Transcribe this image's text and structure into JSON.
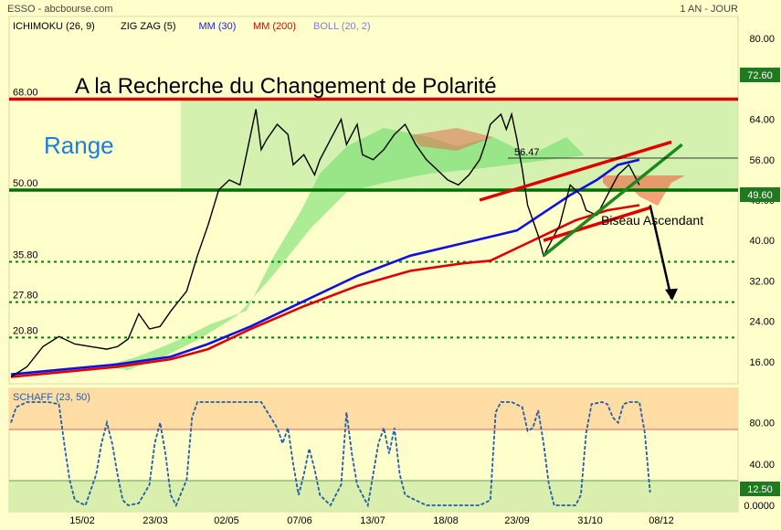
{
  "header": {
    "ticker": "ESSO - abcbourse.com",
    "timeframe": "1 AN - JOUR",
    "indicators": [
      {
        "label": "ICHIMOKU (26, 9)",
        "color": "#000000"
      },
      {
        "label": "ZIG ZAG (5)",
        "color": "#000000"
      },
      {
        "label": "MM (30)",
        "color": "#1a1aff"
      },
      {
        "label": "MM (200)",
        "color": "#e00000"
      },
      {
        "label": "BOLL (20, 2)",
        "color": "#8080d0"
      }
    ]
  },
  "annotations": {
    "headline": "A la Recherche du Changement de Polarité",
    "range_label": "Range",
    "pattern_label": "Biseau Ascendant",
    "peak_label": "56.47"
  },
  "chart_data": [
    {
      "type": "line",
      "title": "ESSO - abcbourse.com",
      "x_ticks": [
        "15/02",
        "23/03",
        "02/05",
        "07/06",
        "13/07",
        "18/08",
        "23/09",
        "31/10",
        "08/12"
      ],
      "y_ticks": [
        "80.00",
        "64.00",
        "56.00",
        "48.00",
        "40.00",
        "32.00",
        "24.00",
        "16.00"
      ],
      "ylim": [
        12,
        84
      ],
      "last_price": "72.60",
      "current_price": "49.60",
      "levels": [
        {
          "label": "68.00",
          "value": 68.0,
          "color": "#e00000",
          "style": "solid"
        },
        {
          "label": "50.00",
          "value": 50.0,
          "color": "#007000",
          "style": "solid"
        },
        {
          "label": "35.80",
          "value": 35.8,
          "color": "#008000",
          "style": "dotted"
        },
        {
          "label": "27.80",
          "value": 27.8,
          "color": "#008000",
          "style": "dotted"
        },
        {
          "label": "20.80",
          "value": 20.8,
          "color": "#008000",
          "style": "dotted"
        }
      ],
      "series": [
        {
          "name": "MM (30)",
          "color": "#1010e0",
          "points": [
            [
              0,
              13.5
            ],
            [
              10,
              14.5
            ],
            [
              20,
              15.5
            ],
            [
              30,
              17
            ],
            [
              37,
              19.5
            ],
            [
              45,
              23
            ],
            [
              55,
              28
            ],
            [
              65,
              33
            ],
            [
              75,
              37
            ],
            [
              85,
              39.5
            ],
            [
              95,
              42
            ],
            [
              100,
              45.5
            ],
            [
              105,
              49
            ],
            [
              110,
              52
            ],
            [
              114,
              55
            ],
            [
              118,
              56
            ]
          ]
        },
        {
          "name": "MM (200)",
          "color": "#e00000",
          "points": [
            [
              0,
              13
            ],
            [
              10,
              14
            ],
            [
              20,
              15
            ],
            [
              30,
              16.5
            ],
            [
              37,
              18.5
            ],
            [
              45,
              22.5
            ],
            [
              55,
              27
            ],
            [
              65,
              31
            ],
            [
              75,
              34
            ],
            [
              85,
              35.5
            ],
            [
              90,
              36
            ],
            [
              95,
              38.5
            ],
            [
              100,
              41
            ],
            [
              106,
              44
            ],
            [
              112,
              46
            ],
            [
              118,
              47
            ]
          ]
        },
        {
          "name": "Prix",
          "color": "#000000",
          "points": [
            [
              0,
              13
            ],
            [
              3,
              15
            ],
            [
              6,
              19
            ],
            [
              9,
              21
            ],
            [
              12,
              19.5
            ],
            [
              15,
              19
            ],
            [
              18,
              18.5
            ],
            [
              20,
              19
            ],
            [
              22,
              20.5
            ],
            [
              24,
              25.5
            ],
            [
              26,
              22.5
            ],
            [
              28,
              23
            ],
            [
              30,
              26
            ],
            [
              33,
              30
            ],
            [
              35,
              37
            ],
            [
              37,
              43
            ],
            [
              39,
              50
            ],
            [
              41,
              52
            ],
            [
              43,
              51
            ],
            [
              44,
              56
            ],
            [
              46,
              66
            ],
            [
              47,
              58
            ],
            [
              48,
              60
            ],
            [
              50,
              63
            ],
            [
              52,
              61
            ],
            [
              53,
              55
            ],
            [
              55,
              57
            ],
            [
              57,
              53
            ],
            [
              58,
              56
            ],
            [
              60,
              60
            ],
            [
              62,
              64
            ],
            [
              63,
              59
            ],
            [
              65,
              63
            ],
            [
              66,
              57
            ],
            [
              68,
              56
            ],
            [
              70,
              58
            ],
            [
              72,
              61
            ],
            [
              74,
              63
            ],
            [
              76,
              59
            ],
            [
              78,
              56
            ],
            [
              80,
              54
            ],
            [
              82,
              52
            ],
            [
              84,
              51
            ],
            [
              86,
              53
            ],
            [
              88,
              56
            ],
            [
              89,
              59
            ],
            [
              90,
              63
            ],
            [
              92,
              65
            ],
            [
              93,
              62
            ],
            [
              94,
              65
            ],
            [
              95,
              60
            ],
            [
              96,
              54
            ],
            [
              97,
              47
            ],
            [
              98,
              44
            ],
            [
              99,
              41
            ],
            [
              100,
              37
            ],
            [
              101,
              39
            ],
            [
              103,
              43
            ],
            [
              105,
              51
            ],
            [
              107,
              49
            ],
            [
              108,
              46
            ],
            [
              110,
              45
            ],
            [
              112,
              49
            ],
            [
              114,
              53
            ],
            [
              116,
              55
            ],
            [
              117,
              53
            ],
            [
              118,
              51
            ]
          ]
        }
      ],
      "trendlines": [
        {
          "name": "bord supérieur",
          "color": "#e00000",
          "from": [
            88,
            48
          ],
          "to": [
            124,
            59.5
          ]
        },
        {
          "name": "bord inférieur",
          "color": "#e00000",
          "from": [
            100,
            40
          ],
          "to": [
            120,
            46.5
          ]
        },
        {
          "name": "support oblique",
          "color": "#1a8a1a",
          "from": [
            100,
            37
          ],
          "to": [
            126,
            59
          ]
        }
      ],
      "projection": {
        "from": [
          120,
          47
        ],
        "to": [
          124,
          28.5
        ]
      }
    },
    {
      "type": "line",
      "title": "SCHAFF (23, 50)",
      "y_ticks": [
        "80.00",
        "40.00",
        "0.0000"
      ],
      "ylim": [
        0,
        100
      ],
      "last_value": "12.50",
      "series": [
        {
          "name": "SCHAFF",
          "color": "#1f5faa",
          "points": [
            [
              0,
              80
            ],
            [
              1,
              95
            ],
            [
              3,
              100
            ],
            [
              5,
              100
            ],
            [
              7,
              100
            ],
            [
              9,
              98
            ],
            [
              10,
              60
            ],
            [
              11,
              25
            ],
            [
              12,
              5
            ],
            [
              14,
              0
            ],
            [
              16,
              30
            ],
            [
              17,
              60
            ],
            [
              18,
              80
            ],
            [
              19,
              60
            ],
            [
              20,
              30
            ],
            [
              21,
              5
            ],
            [
              22,
              0
            ],
            [
              24,
              2
            ],
            [
              26,
              20
            ],
            [
              27,
              60
            ],
            [
              28,
              80
            ],
            [
              29,
              50
            ],
            [
              30,
              10
            ],
            [
              31,
              0
            ],
            [
              33,
              25
            ],
            [
              34,
              85
            ],
            [
              35,
              100
            ],
            [
              38,
              100
            ],
            [
              41,
              100
            ],
            [
              44,
              100
            ],
            [
              47,
              100
            ],
            [
              50,
              75
            ],
            [
              51,
              60
            ],
            [
              52,
              75
            ],
            [
              53,
              40
            ],
            [
              54,
              10
            ],
            [
              55,
              30
            ],
            [
              56,
              55
            ],
            [
              57,
              35
            ],
            [
              58,
              10
            ],
            [
              60,
              0
            ],
            [
              62,
              20
            ],
            [
              63,
              90
            ],
            [
              64,
              50
            ],
            [
              65,
              20
            ],
            [
              67,
              0
            ],
            [
              69,
              60
            ],
            [
              70,
              75
            ],
            [
              71,
              50
            ],
            [
              72,
              75
            ],
            [
              73,
              30
            ],
            [
              74,
              10
            ],
            [
              76,
              5
            ],
            [
              78,
              0
            ],
            [
              80,
              0
            ],
            [
              82,
              0
            ],
            [
              84,
              0
            ],
            [
              86,
              0
            ],
            [
              88,
              0
            ],
            [
              90,
              5
            ],
            [
              91,
              90
            ],
            [
              92,
              100
            ],
            [
              94,
              100
            ],
            [
              96,
              95
            ],
            [
              97,
              72
            ],
            [
              98,
              75
            ],
            [
              99,
              92
            ],
            [
              100,
              60
            ],
            [
              101,
              20
            ],
            [
              102,
              0
            ],
            [
              104,
              0
            ],
            [
              106,
              0
            ],
            [
              107,
              10
            ],
            [
              108,
              70
            ],
            [
              109,
              98
            ],
            [
              111,
              100
            ],
            [
              112,
              98
            ],
            [
              113,
              85
            ],
            [
              114,
              80
            ],
            [
              115,
              98
            ],
            [
              116,
              100
            ],
            [
              118,
              100
            ],
            [
              119,
              70
            ],
            [
              120,
              12.5
            ]
          ]
        }
      ]
    }
  ]
}
